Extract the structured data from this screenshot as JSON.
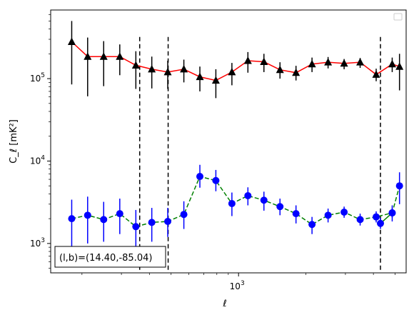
{
  "chart_data": {
    "type": "scatter",
    "title": "",
    "xlabel": "ℓ",
    "ylabel": "C_ℓ [mK²]",
    "xscale": "log",
    "yscale": "log",
    "xlim": [
      145,
      5600
    ],
    "ylim": [
      440,
      680000
    ],
    "grid": false,
    "legend": "top-right",
    "annotation": "(l,b)=(14.40,-85.04)",
    "x_tick_labels": [
      {
        "value": 1000,
        "base": "10",
        "exp": "3"
      }
    ],
    "y_tick_labels": [
      {
        "value": 1000,
        "base": "10",
        "exp": "3"
      },
      {
        "value": 10000,
        "base": "10",
        "exp": "4"
      },
      {
        "value": 100000,
        "base": "10",
        "exp": "5"
      }
    ],
    "vlines": [
      362,
      485,
      4300
    ],
    "vline_range": [
      440,
      320000
    ],
    "x": [
      180,
      212,
      250,
      295,
      348,
      410,
      483,
      570,
      672,
      792,
      934,
      1101,
      1298,
      1531,
      1805,
      2128,
      2510,
      2960,
      3490,
      4115,
      4852
    ],
    "series": [
      {
        "color": "#ff0000",
        "marker": "triangle",
        "marker_color": "#000000",
        "line_style": "solid",
        "values": [
          280000,
          185000,
          185000,
          185000,
          145000,
          130000,
          120000,
          130000,
          105000,
          95000,
          120000,
          165000,
          160000,
          128000,
          118000,
          150000,
          158000,
          153000,
          158000,
          112000,
          150000
        ],
        "err_lo": [
          195000,
          124000,
          104000,
          75000,
          70000,
          54000,
          45000,
          40000,
          35000,
          37000,
          37000,
          47000,
          40000,
          28000,
          23000,
          30000,
          25000,
          23000,
          23000,
          19000,
          30000
        ],
        "err_hi": [
          220000,
          130000,
          100000,
          75000,
          70000,
          55000,
          45000,
          40000,
          35000,
          35000,
          35000,
          45000,
          40000,
          30000,
          25000,
          30000,
          25000,
          20000,
          20000,
          20000,
          30000
        ]
      },
      {
        "color": "#008000",
        "marker": "circle",
        "marker_color": "#0000ff",
        "line_style": "dashed",
        "values": [
          2000,
          2200,
          1950,
          2300,
          1600,
          1800,
          1850,
          2250,
          6500,
          5800,
          3050,
          3800,
          3350,
          2800,
          2300,
          1700,
          2200,
          2400,
          1950,
          2100,
          2350
        ],
        "err_lo": [
          1100,
          1200,
          900,
          1000,
          750,
          750,
          650,
          750,
          1750,
          1500,
          900,
          900,
          850,
          600,
          550,
          400,
          400,
          350,
          300,
          300,
          300
        ],
        "err_hi": [
          1400,
          1500,
          1250,
          1200,
          950,
          900,
          850,
          1000,
          2500,
          2000,
          1100,
          1000,
          900,
          700,
          600,
          400,
          450,
          400,
          350,
          350,
          350
        ]
      }
    ],
    "extra_points": {
      "x": [
        4852,
        5230
      ],
      "triangle_values": [
        150000,
        140000
      ],
      "triangle_err_lo": [
        30000,
        68000
      ],
      "triangle_err_hi": [
        30000,
        60000
      ],
      "circle_values": [
        1750,
        2350,
        5000
      ],
      "circle_x": [
        4300,
        4852,
        5230
      ],
      "circle_err_lo": [
        250,
        500,
        2000
      ],
      "circle_err_hi": [
        300,
        550,
        2300
      ]
    }
  }
}
